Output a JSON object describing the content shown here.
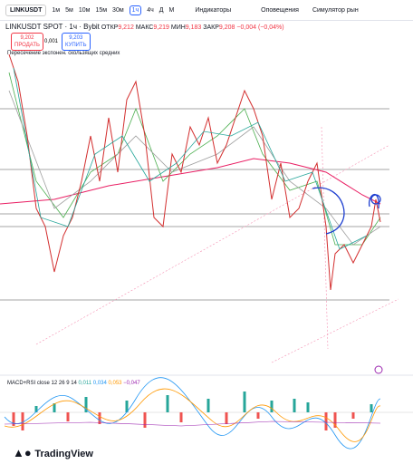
{
  "toolbar": {
    "symbol": "LINKUSDT",
    "intervals": [
      "1м",
      "5м",
      "10м",
      "15м",
      "30м",
      "1ч",
      "4ч",
      "Д",
      "М"
    ],
    "indicators": "Индикаторы",
    "alerts": "Оповещения",
    "replay": "Симулятор рын"
  },
  "legend": {
    "title": "LINKUSDT SPOT · 1ч · Bybit",
    "ohlc": [
      {
        "label": "ОТКР",
        "value": "9,212"
      },
      {
        "label": "МАКС",
        "value": "9,219"
      },
      {
        "label": "МИН",
        "value": "9,183"
      },
      {
        "label": "ЗАКР",
        "value": "9,208"
      }
    ],
    "change": "−0,004 (−0,04%)"
  },
  "trade": {
    "sell_price": "9,202",
    "sell_label": "ПРОДАТЬ",
    "spread": "0,001",
    "buy_price": "9,203",
    "buy_label": "КУПИТЬ"
  },
  "indicator_name": "Пересечение экспонен. скользящих средних",
  "macd": {
    "title": "MACD+RSI close 12 26 9 14",
    "values": [
      "0,011",
      "0,034",
      "0,053",
      "−0,047"
    ]
  },
  "logo": "TradingView"
}
